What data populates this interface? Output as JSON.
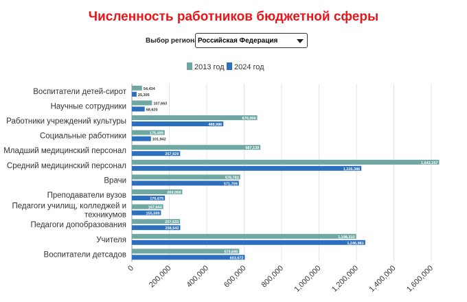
{
  "header": {
    "title": "Численность работников бюджетной сферы",
    "region_label": "Выбор региона",
    "region_value": "Российская Федерация"
  },
  "chart_data": {
    "type": "bar",
    "orientation": "horizontal",
    "title": "Численность работников бюджетной сферы",
    "legend_position": "top-center",
    "categories": [
      "Воспитатели детей-сирот",
      "Научные сотрудники",
      "Работники учреждений культуры",
      "Социальные работники",
      "Младший медицинский персонал",
      "Средний медицинский персонал",
      "Врачи",
      "Преподаватели вузов",
      "Педагоги училищ, колледжей и техникумов",
      "Педагоги допобразования",
      "Учителя",
      "Воспитатели детсадов"
    ],
    "series": [
      {
        "name": "2013 год",
        "color": "#6fa8a3",
        "values": [
          54434,
          107663,
          670006,
          175499,
          687139,
          1642157,
          578783,
          269068,
          167644,
          257533,
          1198310,
          573695
        ]
      },
      {
        "name": "2024 год",
        "color": "#2b6fbd",
        "values": [
          25305,
          68620,
          488986,
          101942,
          257929,
          1226386,
          571709,
          176675,
          155599,
          258542,
          1246981,
          603672
        ]
      }
    ],
    "xlim": [
      0,
      1600000
    ],
    "xticks": [
      "0",
      "200,000",
      "400,000",
      "600,000",
      "800,000",
      "1,000,000",
      "1,200,000",
      "1,400,000",
      "1,600,000"
    ],
    "grid": true
  }
}
